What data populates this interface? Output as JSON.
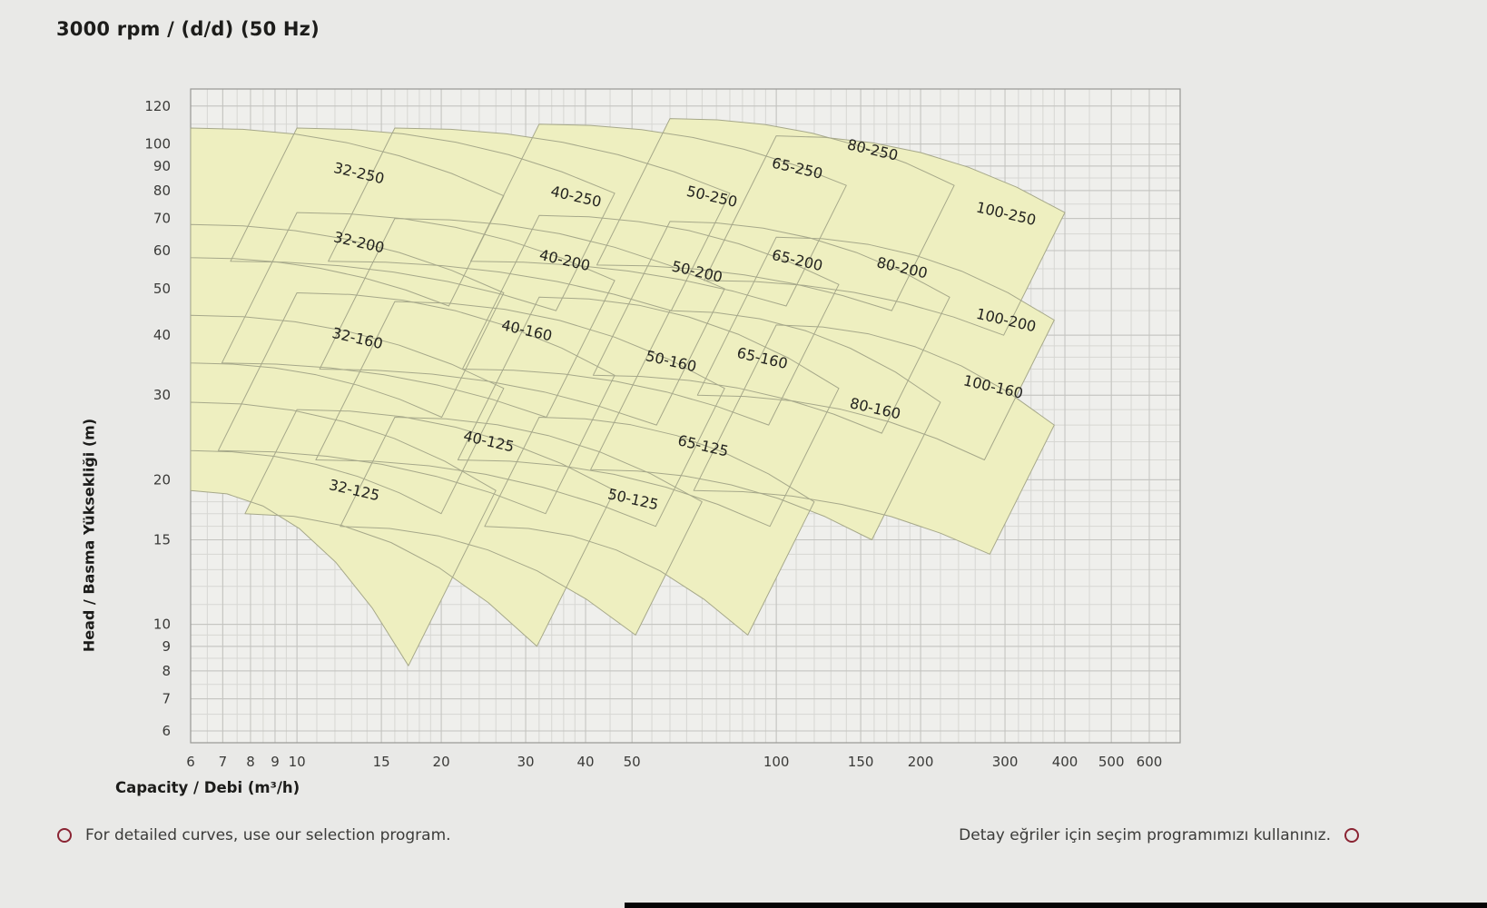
{
  "title": "3000 rpm / (d/d) (50 Hz)",
  "axes": {
    "x_label": "Capacity / Debi (m³/h)",
    "y_label": "Head / Basma Yüksekliği (m)",
    "x_ticks": [
      6,
      7,
      8,
      9,
      10,
      15,
      20,
      30,
      40,
      50,
      100,
      150,
      200,
      300,
      400,
      500,
      600
    ],
    "y_ticks": [
      120,
      100,
      90,
      80,
      70,
      60,
      50,
      40,
      30,
      20,
      15,
      10,
      9,
      8,
      7,
      6
    ],
    "x_range": [
      6,
      600
    ],
    "y_range": [
      6,
      120
    ],
    "scale": "log-log"
  },
  "footer": {
    "left": "For detailed curves, use our selection program.",
    "right": "Detay eğriler için seçim programımızı kullanınız."
  },
  "colors": {
    "page_bg": "#e9e9e7",
    "plot_bg": "#efefec",
    "grid_minor": "#d7d7d3",
    "grid_major": "#c3c3bf",
    "plot_border": "#989894",
    "tile_fill": "#eeefc0",
    "tile_stroke": "#a6a88a",
    "label_text": "#23231f",
    "tick_text": "#3a3a38",
    "accent_circle": "#8a2433"
  },
  "chart_data": {
    "type": "area",
    "title": "3000 rpm / (d/d) (50 Hz)",
    "xlabel": "Capacity / Debi (m³/h)",
    "ylabel": "Head / Basma Yüksekliği (m)",
    "xlim": [
      6,
      600
    ],
    "ylim": [
      6,
      120
    ],
    "log_log": true,
    "grid": true,
    "series_note": "Each series is one pump model envelope: q_range = capacity span (m3/h), h_top = head along max-impeller curve [left,right], h_bottom = head along min-impeller curve [left, right-tip], label_at = label position (Q,H)",
    "series": [
      {
        "name": "32-250",
        "q_range": [
          6,
          27
        ],
        "h_top": [
          108,
          78
        ],
        "h_bottom": [
          58,
          46
        ],
        "label_at": [
          13.4,
          85
        ]
      },
      {
        "name": "40-250",
        "q_range": [
          10,
          46
        ],
        "h_top": [
          108,
          79
        ],
        "h_bottom": [
          57,
          45
        ],
        "label_at": [
          38,
          76
        ]
      },
      {
        "name": "50-250",
        "q_range": [
          16,
          80
        ],
        "h_top": [
          108,
          79
        ],
        "h_bottom": [
          57,
          45
        ],
        "label_at": [
          73,
          76
        ]
      },
      {
        "name": "65-250",
        "q_range": [
          32,
          140
        ],
        "h_top": [
          110,
          82
        ],
        "h_bottom": [
          57,
          46
        ],
        "label_at": [
          110,
          87
        ]
      },
      {
        "name": "80-250",
        "q_range": [
          60,
          235
        ],
        "h_top": [
          113,
          82
        ],
        "h_bottom": [
          56,
          45
        ],
        "label_at": [
          158,
          95
        ]
      },
      {
        "name": "100-250",
        "q_range": [
          100,
          400
        ],
        "h_top": [
          104,
          72
        ],
        "h_bottom": [
          52,
          40
        ],
        "label_at": [
          300,
          70
        ]
      },
      {
        "name": "32-200",
        "q_range": [
          6,
          27
        ],
        "h_top": [
          68,
          49
        ],
        "h_bottom": [
          35,
          27
        ],
        "label_at": [
          13.4,
          61
        ]
      },
      {
        "name": "40-200",
        "q_range": [
          10,
          46
        ],
        "h_top": [
          72,
          52
        ],
        "h_bottom": [
          35,
          27
        ],
        "label_at": [
          36,
          56
        ]
      },
      {
        "name": "50-200",
        "q_range": [
          16,
          78
        ],
        "h_top": [
          70,
          50
        ],
        "h_bottom": [
          34,
          26
        ],
        "label_at": [
          68,
          53
        ]
      },
      {
        "name": "65-200",
        "q_range": [
          32,
          135
        ],
        "h_top": [
          71,
          51
        ],
        "h_bottom": [
          34,
          26
        ],
        "label_at": [
          110,
          56
        ]
      },
      {
        "name": "80-200",
        "q_range": [
          60,
          230
        ],
        "h_top": [
          69,
          48
        ],
        "h_bottom": [
          33,
          25
        ],
        "label_at": [
          182,
          54
        ]
      },
      {
        "name": "100-200",
        "q_range": [
          100,
          380
        ],
        "h_top": [
          64,
          43
        ],
        "h_bottom": [
          30,
          22
        ],
        "label_at": [
          300,
          42
        ]
      },
      {
        "name": "32-160",
        "q_range": [
          6,
          27
        ],
        "h_top": [
          44,
          31
        ],
        "h_bottom": [
          23,
          17
        ],
        "label_at": [
          13.3,
          38.5
        ]
      },
      {
        "name": "40-160",
        "q_range": [
          10,
          46
        ],
        "h_top": [
          49,
          33
        ],
        "h_bottom": [
          23,
          17
        ],
        "label_at": [
          30,
          40
        ]
      },
      {
        "name": "50-160",
        "q_range": [
          16,
          78
        ],
        "h_top": [
          47,
          31
        ],
        "h_bottom": [
          22,
          16
        ],
        "label_at": [
          60,
          34.5
        ]
      },
      {
        "name": "65-160",
        "q_range": [
          32,
          135
        ],
        "h_top": [
          48,
          31
        ],
        "h_bottom": [
          22,
          16
        ],
        "label_at": [
          93,
          35
        ]
      },
      {
        "name": "80-160",
        "q_range": [
          60,
          220
        ],
        "h_top": [
          45,
          29
        ],
        "h_bottom": [
          21,
          15
        ],
        "label_at": [
          160,
          27.5
        ]
      },
      {
        "name": "100-160",
        "q_range": [
          100,
          380
        ],
        "h_top": [
          42,
          26
        ],
        "h_bottom": [
          19,
          14
        ],
        "label_at": [
          282,
          30.5
        ]
      },
      {
        "name": "32-125",
        "q_range": [
          6,
          26
        ],
        "h_top": [
          29,
          19
        ],
        "h_bottom": [
          19,
          8.2
        ],
        "label_at": [
          13.1,
          18.6
        ]
      },
      {
        "name": "40-125",
        "q_range": [
          10,
          46
        ],
        "h_top": [
          28,
          19
        ],
        "h_bottom": [
          17,
          9
        ],
        "label_at": [
          25,
          23.5
        ]
      },
      {
        "name": "50-125",
        "q_range": [
          16,
          70
        ],
        "h_top": [
          27,
          18
        ],
        "h_bottom": [
          16,
          9.5
        ],
        "label_at": [
          50,
          17.8
        ]
      },
      {
        "name": "65-125",
        "q_range": [
          32,
          120
        ],
        "h_top": [
          27,
          18
        ],
        "h_bottom": [
          16,
          9.5
        ],
        "label_at": [
          70,
          23
        ]
      }
    ]
  }
}
